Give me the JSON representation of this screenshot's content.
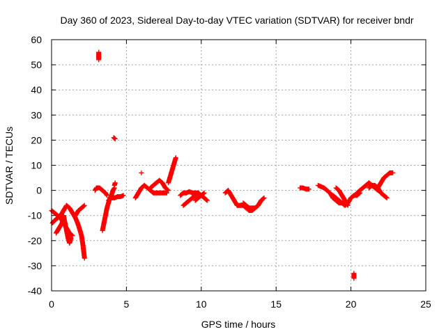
{
  "chart_data": {
    "type": "scatter",
    "title": "Day 360 of 2023, Sidereal Day-to-day VTEC variation (SDTVAR) for receiver bndr",
    "xlabel": "GPS time / hours",
    "ylabel": "SDTVAR / TECUs",
    "xlim": [
      0,
      25
    ],
    "ylim": [
      -40,
      60
    ],
    "xticks": [
      "0",
      "5",
      "10",
      "15",
      "20",
      "25"
    ],
    "xtick_values": [
      0,
      5,
      10,
      15,
      20,
      25
    ],
    "yticks": [
      "-40",
      "-30",
      "-20",
      "-10",
      "0",
      "10",
      "20",
      "30",
      "40",
      "50",
      "60"
    ],
    "ytick_values": [
      -40,
      -30,
      -20,
      -10,
      0,
      10,
      20,
      30,
      40,
      50,
      60
    ],
    "grid": true,
    "marker": "+",
    "color": "#ff0000",
    "series": [
      {
        "name": "s1",
        "points": [
          [
            0.0,
            -8
          ],
          [
            0.2,
            -9
          ],
          [
            0.4,
            -10
          ],
          [
            0.6,
            -11
          ],
          [
            0.8,
            -13
          ],
          [
            1.0,
            -15
          ],
          [
            1.2,
            -17
          ],
          [
            1.4,
            -18
          ]
        ]
      },
      {
        "name": "s2",
        "points": [
          [
            0.05,
            -13
          ],
          [
            0.2,
            -12
          ],
          [
            0.4,
            -11
          ],
          [
            0.6,
            -10
          ],
          [
            0.8,
            -8
          ],
          [
            1.0,
            -6
          ],
          [
            1.2,
            -7
          ],
          [
            1.4,
            -9
          ],
          [
            1.6,
            -11
          ],
          [
            1.8,
            -14
          ],
          [
            2.0,
            -18
          ],
          [
            2.1,
            -22
          ],
          [
            2.2,
            -27
          ]
        ]
      },
      {
        "name": "s3",
        "points": [
          [
            0.3,
            -17
          ],
          [
            0.5,
            -15
          ],
          [
            0.7,
            -13
          ],
          [
            0.8,
            -10
          ],
          [
            0.9,
            -13
          ],
          [
            1.0,
            -16
          ],
          [
            1.1,
            -19
          ],
          [
            1.2,
            -21
          ],
          [
            1.3,
            -19
          ]
        ]
      },
      {
        "name": "s4",
        "points": [
          [
            1.6,
            -10
          ],
          [
            1.8,
            -8
          ],
          [
            2.0,
            -7
          ],
          [
            2.2,
            -6
          ]
        ]
      },
      {
        "name": "s5",
        "points": [
          [
            3.15,
            52
          ],
          [
            3.15,
            53
          ],
          [
            3.15,
            54
          ],
          [
            3.15,
            55
          ]
        ]
      },
      {
        "name": "s6",
        "points": [
          [
            2.9,
            0
          ],
          [
            3.0,
            1
          ],
          [
            3.2,
            1
          ],
          [
            3.4,
            0
          ],
          [
            3.6,
            -1
          ],
          [
            3.7,
            -2
          ]
        ]
      },
      {
        "name": "s7",
        "points": [
          [
            3.4,
            -16
          ],
          [
            3.5,
            -13
          ],
          [
            3.6,
            -10
          ],
          [
            3.7,
            -7
          ],
          [
            3.8,
            -5
          ],
          [
            3.9,
            -3
          ],
          [
            4.0,
            -2
          ],
          [
            4.1,
            0
          ],
          [
            4.2,
            1
          ]
        ]
      },
      {
        "name": "s8",
        "points": [
          [
            4.2,
            2
          ],
          [
            4.25,
            3
          ]
        ]
      },
      {
        "name": "s9",
        "points": [
          [
            3.8,
            -4
          ],
          [
            4.0,
            -3
          ],
          [
            4.2,
            -3
          ],
          [
            4.4,
            -2.5
          ],
          [
            4.6,
            -2.5
          ],
          [
            4.8,
            -2
          ]
        ]
      },
      {
        "name": "s10",
        "points": [
          [
            4.15,
            21
          ],
          [
            4.25,
            20.5
          ]
        ]
      },
      {
        "name": "s11",
        "points": [
          [
            5.6,
            -3
          ],
          [
            5.8,
            -1
          ],
          [
            6.0,
            1
          ],
          [
            6.2,
            2
          ],
          [
            6.4,
            1
          ],
          [
            6.6,
            0
          ],
          [
            6.8,
            -1
          ],
          [
            7.0,
            -1
          ],
          [
            7.2,
            -1
          ],
          [
            7.5,
            -1
          ],
          [
            7.7,
            -1
          ]
        ]
      },
      {
        "name": "s12",
        "points": [
          [
            6.0,
            7
          ]
        ]
      },
      {
        "name": "s13",
        "points": [
          [
            6.6,
            1
          ],
          [
            6.8,
            2
          ],
          [
            7.0,
            3
          ],
          [
            7.2,
            4
          ],
          [
            7.4,
            3
          ],
          [
            7.6,
            1
          ],
          [
            7.8,
            0
          ]
        ]
      },
      {
        "name": "s14",
        "points": [
          [
            7.8,
            3
          ],
          [
            7.9,
            5
          ],
          [
            8.0,
            7
          ],
          [
            8.1,
            9
          ],
          [
            8.2,
            11
          ],
          [
            8.3,
            13
          ]
        ]
      },
      {
        "name": "s15",
        "points": [
          [
            8.6,
            -2
          ],
          [
            8.8,
            -1
          ],
          [
            9.0,
            -1
          ],
          [
            9.2,
            -0.5
          ],
          [
            9.4,
            -1
          ],
          [
            9.6,
            -1
          ],
          [
            9.8,
            -1
          ],
          [
            10.0,
            -2
          ],
          [
            10.2,
            -3
          ],
          [
            10.4,
            -4
          ]
        ]
      },
      {
        "name": "s16",
        "points": [
          [
            8.8,
            -6
          ],
          [
            9.0,
            -5
          ],
          [
            9.2,
            -4
          ],
          [
            9.4,
            -3
          ],
          [
            9.6,
            -2
          ],
          [
            9.8,
            -1
          ]
        ]
      },
      {
        "name": "s17",
        "points": [
          [
            9.6,
            -4
          ],
          [
            9.8,
            -3
          ],
          [
            10.0,
            -2
          ],
          [
            10.2,
            -1
          ]
        ]
      },
      {
        "name": "s18",
        "points": [
          [
            11.6,
            -1
          ],
          [
            11.8,
            0
          ],
          [
            12.0,
            -2
          ],
          [
            12.2,
            -4
          ],
          [
            12.4,
            -6
          ],
          [
            12.6,
            -6
          ],
          [
            12.8,
            -6
          ],
          [
            13.0,
            -7
          ],
          [
            13.2,
            -8
          ],
          [
            13.4,
            -8
          ],
          [
            13.6,
            -7
          ]
        ]
      },
      {
        "name": "s19",
        "points": [
          [
            12.8,
            -5
          ],
          [
            13.0,
            -6
          ],
          [
            13.2,
            -7
          ],
          [
            13.4,
            -7
          ],
          [
            13.6,
            -7
          ],
          [
            13.8,
            -6
          ],
          [
            14.0,
            -4
          ],
          [
            14.2,
            -3
          ]
        ]
      },
      {
        "name": "s20",
        "points": [
          [
            16.6,
            1
          ],
          [
            16.8,
            1
          ],
          [
            17.0,
            0.5
          ],
          [
            17.2,
            0.5
          ]
        ]
      },
      {
        "name": "s21",
        "points": [
          [
            17.8,
            2
          ],
          [
            18.0,
            1.5
          ],
          [
            18.2,
            1
          ],
          [
            18.4,
            0
          ],
          [
            18.6,
            -1
          ],
          [
            18.8,
            -3
          ],
          [
            19.0,
            -4
          ],
          [
            19.2,
            -5
          ],
          [
            19.4,
            -5
          ]
        ]
      },
      {
        "name": "s22",
        "points": [
          [
            18.8,
            -2
          ],
          [
            19.0,
            -3
          ],
          [
            19.2,
            -4
          ],
          [
            19.4,
            -5
          ],
          [
            19.6,
            -6
          ],
          [
            19.8,
            -5
          ],
          [
            20.0,
            -3
          ],
          [
            20.2,
            -2
          ],
          [
            20.4,
            -2
          ],
          [
            20.6,
            -1
          ]
        ]
      },
      {
        "name": "s23",
        "points": [
          [
            19.0,
            1
          ],
          [
            19.2,
            0
          ],
          [
            19.4,
            -2
          ],
          [
            19.6,
            -4
          ],
          [
            19.8,
            -6
          ]
        ]
      },
      {
        "name": "s24",
        "points": [
          [
            20.2,
            -35
          ],
          [
            20.2,
            -34
          ],
          [
            20.2,
            -33
          ]
        ]
      },
      {
        "name": "s25",
        "points": [
          [
            20.4,
            -1
          ],
          [
            20.6,
            0
          ],
          [
            20.8,
            1
          ],
          [
            21.0,
            2
          ],
          [
            21.2,
            3
          ],
          [
            21.4,
            2
          ],
          [
            21.6,
            1
          ],
          [
            21.8,
            0
          ]
        ]
      },
      {
        "name": "s26",
        "points": [
          [
            21.2,
            1
          ],
          [
            21.4,
            2
          ],
          [
            21.6,
            2
          ],
          [
            21.8,
            1
          ],
          [
            22.0,
            -1
          ],
          [
            22.2,
            -2
          ],
          [
            22.4,
            -3
          ]
        ]
      },
      {
        "name": "s27",
        "points": [
          [
            21.8,
            1
          ],
          [
            22.0,
            3
          ],
          [
            22.2,
            5
          ],
          [
            22.4,
            6
          ],
          [
            22.6,
            7
          ],
          [
            22.8,
            7
          ]
        ]
      }
    ]
  }
}
